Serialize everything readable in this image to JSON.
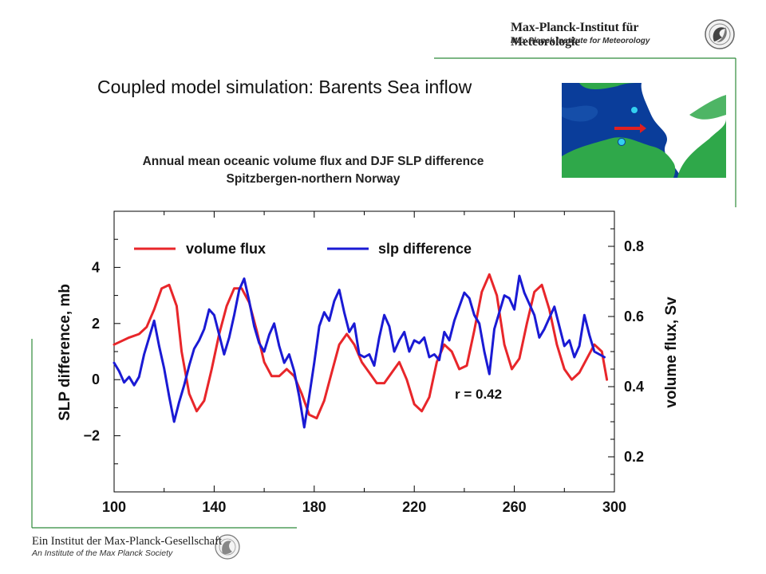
{
  "header": {
    "institute_de": "Max-Planck-Institut für Meteorologie",
    "institute_en": "Max Planck Institute for Meteorology",
    "logo_icon": "mpi-meteorology-logo-icon"
  },
  "slide": {
    "title": "Coupled model simulation: Barents Sea inflow"
  },
  "footer": {
    "society_de": "Ein Institut der Max-Planck-Gesellschaft",
    "society_en": "An Institute of the Max Planck Society",
    "logo_icon": "minerva-logo-icon"
  },
  "map": {
    "icon": "barents-sea-map-icon",
    "colors": {
      "sea": "#0a3d9a",
      "land": "#2fa84a",
      "ice": "#ffffff",
      "arrow": "#e02020",
      "station": "#33d0f0"
    }
  },
  "chart_data": {
    "type": "line",
    "title": "Annual mean oceanic volume flux and DJF SLP difference Spitzbergen-northern Norway",
    "xlabel": "",
    "ylabel_left": "SLP difference, mb",
    "ylabel_right": "volume flux, Sv",
    "xlim": [
      100,
      300
    ],
    "ylim_left": [
      -4,
      6
    ],
    "ylim_right": [
      0.1,
      0.9
    ],
    "x_ticks": [
      "100",
      "140",
      "180",
      "220",
      "260",
      "300"
    ],
    "y_left_ticks": [
      "4",
      "2",
      "0",
      "−2"
    ],
    "y_left_tick_values": [
      4,
      2,
      0,
      -2
    ],
    "y_right_ticks": [
      "0.8",
      "0.6",
      "0.4",
      "0.2"
    ],
    "y_right_tick_values": [
      0.8,
      0.6,
      0.4,
      0.2
    ],
    "legend_placement": "top",
    "grid": false,
    "annotation": "r = 0.42",
    "series": [
      {
        "name": "volume flux",
        "axis": "right",
        "color": "#e8262a",
        "x": [
          100,
          103,
          106,
          110,
          113,
          116,
          119,
          122,
          125,
          127,
          130,
          133,
          136,
          139,
          142,
          145,
          148,
          151,
          154,
          157,
          160,
          163,
          166,
          169,
          172,
          175,
          178,
          181,
          184,
          187,
          190,
          193,
          196,
          199,
          202,
          205,
          208,
          211,
          214,
          217,
          220,
          223,
          226,
          229,
          232,
          235,
          238,
          241,
          244,
          247,
          250,
          253,
          256,
          259,
          262,
          265,
          268,
          271,
          274,
          277,
          280,
          283,
          286,
          289,
          292,
          295,
          297
        ],
        "values": [
          0.52,
          0.53,
          0.54,
          0.55,
          0.57,
          0.62,
          0.68,
          0.69,
          0.63,
          0.5,
          0.38,
          0.33,
          0.36,
          0.45,
          0.55,
          0.63,
          0.68,
          0.68,
          0.64,
          0.56,
          0.47,
          0.43,
          0.43,
          0.45,
          0.43,
          0.38,
          0.32,
          0.31,
          0.36,
          0.44,
          0.52,
          0.55,
          0.52,
          0.47,
          0.44,
          0.41,
          0.41,
          0.44,
          0.47,
          0.42,
          0.35,
          0.33,
          0.37,
          0.47,
          0.52,
          0.5,
          0.45,
          0.46,
          0.56,
          0.67,
          0.72,
          0.66,
          0.52,
          0.45,
          0.48,
          0.58,
          0.67,
          0.69,
          0.62,
          0.52,
          0.45,
          0.42,
          0.44,
          0.48,
          0.52,
          0.5,
          0.42
        ]
      },
      {
        "name": "slp difference",
        "axis": "left",
        "color": "#1a1ad4",
        "x": [
          100,
          102,
          104,
          106,
          108,
          110,
          112,
          114,
          116,
          118,
          120,
          122,
          124,
          126,
          128,
          130,
          132,
          134,
          136,
          138,
          140,
          142,
          144,
          146,
          148,
          150,
          152,
          154,
          156,
          158,
          160,
          162,
          164,
          166,
          168,
          170,
          172,
          174,
          176,
          178,
          180,
          182,
          184,
          186,
          188,
          190,
          192,
          194,
          196,
          198,
          200,
          202,
          204,
          206,
          208,
          210,
          212,
          214,
          216,
          218,
          220,
          222,
          224,
          226,
          228,
          230,
          232,
          234,
          236,
          238,
          240,
          242,
          244,
          246,
          248,
          250,
          252,
          254,
          256,
          258,
          260,
          262,
          264,
          266,
          268,
          270,
          272,
          274,
          276,
          278,
          280,
          282,
          284,
          286,
          288,
          290,
          292,
          294,
          296
        ],
        "values": [
          0.6,
          0.3,
          -0.1,
          0.1,
          -0.2,
          0.1,
          0.9,
          1.5,
          2.1,
          1.2,
          0.4,
          -0.6,
          -1.5,
          -0.8,
          -0.2,
          0.5,
          1.1,
          1.4,
          1.8,
          2.5,
          2.3,
          1.6,
          0.9,
          1.5,
          2.3,
          3.2,
          3.6,
          2.8,
          1.9,
          1.3,
          1.0,
          1.6,
          2.0,
          1.2,
          0.6,
          0.9,
          0.3,
          -0.6,
          -1.7,
          -0.6,
          0.6,
          1.9,
          2.4,
          2.1,
          2.8,
          3.2,
          2.4,
          1.7,
          2.0,
          0.9,
          0.8,
          0.9,
          0.5,
          1.5,
          2.3,
          1.9,
          1.0,
          1.4,
          1.7,
          1.0,
          1.4,
          1.3,
          1.5,
          0.8,
          0.9,
          0.7,
          1.7,
          1.4,
          2.1,
          2.6,
          3.1,
          2.9,
          2.3,
          2.0,
          1.0,
          0.2,
          1.8,
          2.4,
          3.0,
          2.9,
          2.5,
          3.7,
          3.1,
          2.7,
          2.3,
          1.5,
          1.8,
          2.2,
          2.6,
          1.9,
          1.2,
          1.4,
          0.8,
          1.2,
          2.3,
          1.6,
          1.0,
          0.9,
          0.8
        ]
      }
    ]
  }
}
